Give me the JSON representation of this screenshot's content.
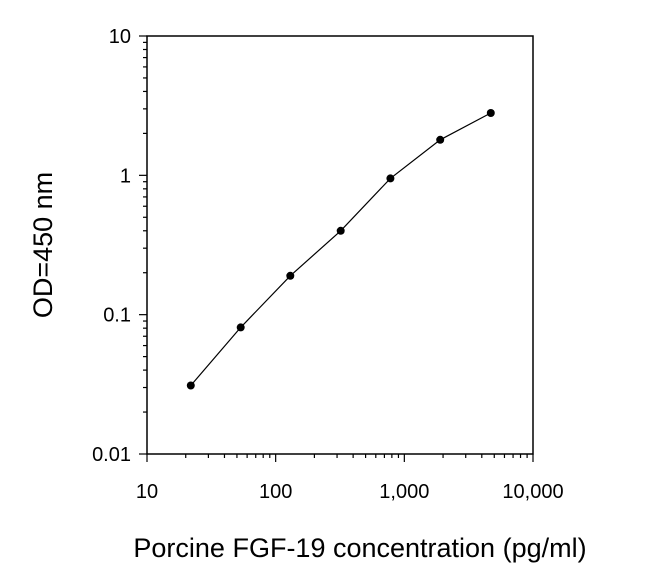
{
  "chart_data": {
    "type": "line",
    "title": "",
    "xlabel": "Porcine FGF-19 concentration (pg/ml)",
    "ylabel": "OD=450 nm",
    "x_scale": "log",
    "y_scale": "log",
    "xlim": [
      10,
      10000
    ],
    "ylim": [
      0.01,
      10
    ],
    "x_ticks": [
      10,
      100,
      1000,
      10000
    ],
    "x_tick_labels": [
      "10",
      "100",
      "1,000",
      "10,000"
    ],
    "y_ticks": [
      0.01,
      0.1,
      1,
      10
    ],
    "y_tick_labels": [
      "0.01",
      "0.1",
      "1",
      "10"
    ],
    "grid": false,
    "legend": "none",
    "colors": {
      "line": "#000000",
      "marker": "#000000"
    },
    "series": [
      {
        "x": [
          21.9,
          53.5,
          130,
          320,
          780,
          1900,
          4700
        ],
        "y": [
          0.031,
          0.081,
          0.19,
          0.4,
          0.95,
          1.8,
          2.8
        ]
      }
    ]
  }
}
